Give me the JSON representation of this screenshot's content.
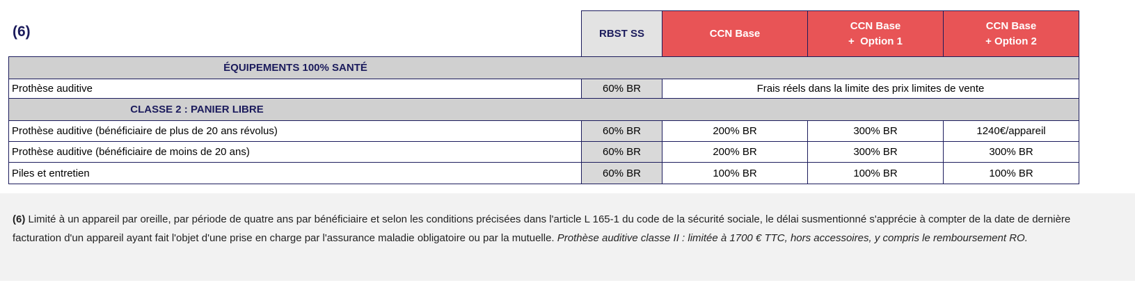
{
  "ref": "(6)",
  "columns": [
    "RBST SS",
    "CCN Base",
    "CCN Base\n+  Option 1",
    "CCN Base\n+ Option 2"
  ],
  "sections": [
    {
      "title": "ÉQUIPEMENTS 100% SANTÉ",
      "rows": [
        {
          "label": "Prothèse auditive",
          "rbst": "60% BR",
          "merged": "Frais réels dans la limite des prix limites de vente"
        }
      ]
    },
    {
      "title": "CLASSE 2 : PANIER LIBRE",
      "rows": [
        {
          "label": "Prothèse auditive (bénéficiaire de plus de 20 ans révolus)",
          "values": [
            "60% BR",
            "200% BR",
            "300% BR",
            "1240€/appareil"
          ]
        },
        {
          "label": "Prothèse auditive (bénéficiaire de moins de 20 ans)",
          "values": [
            "60% BR",
            "200% BR",
            "300% BR",
            "300% BR"
          ]
        },
        {
          "label": "Piles et entretien",
          "values": [
            "60% BR",
            "100% BR",
            "100% BR",
            "100% BR"
          ]
        }
      ]
    }
  ],
  "footnote": {
    "ref": "(6)",
    "text": " Limité à un appareil par oreille, par période de quatre ans par bénéficiaire et selon les conditions précisées dans l'article L 165-1 du code de la sécurité sociale, le délai susmentionné s'apprécie à compter de la date de dernière facturation d'un appareil ayant fait l'objet d'une prise en charge par l'assurance maladie obligatoire ou par la mutuelle. ",
    "italic": "Prothèse auditive classe II : limitée à 1700 € TTC, hors accessoires, y compris le remboursement RO."
  },
  "colors": {
    "header_red": "#e85456",
    "navy": "#1b1b5c",
    "section_grey": "#d0d0d0"
  }
}
